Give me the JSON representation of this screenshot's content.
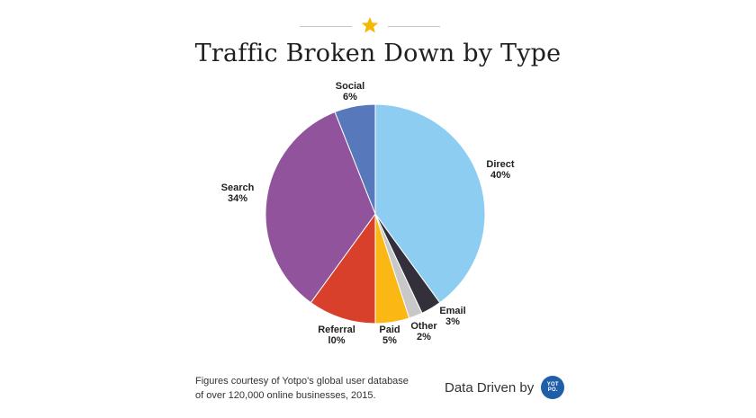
{
  "header": {
    "title": "Traffic Broken Down by Type",
    "star_color": "#f5b800"
  },
  "chart_data": {
    "type": "pie",
    "title": "Traffic Broken Down by Type",
    "slices": [
      {
        "label": "Direct",
        "value": 40,
        "value_label": "40%",
        "color": "#8ecdf2"
      },
      {
        "label": "Email",
        "value": 3,
        "value_label": "3%",
        "color": "#33303c"
      },
      {
        "label": "Other",
        "value": 2,
        "value_label": "2%",
        "color": "#c8c8c8"
      },
      {
        "label": "Paid",
        "value": 5,
        "value_label": "5%",
        "color": "#fbb713"
      },
      {
        "label": "Referral",
        "value": 10,
        "value_label": "l0%",
        "color": "#d9402b"
      },
      {
        "label": "Search",
        "value": 34,
        "value_label": "34%",
        "color": "#91549c"
      },
      {
        "label": "Social",
        "value": 6,
        "value_label": "6%",
        "color": "#5779bb"
      }
    ]
  },
  "footer": {
    "note_line1": "Figures courtesy of Yotpo's global user database",
    "note_line2": "of over 120,000 online businesses, 2015.",
    "brand_text": "Data Driven by",
    "logo_line1": "YOT",
    "logo_line2": "PO.",
    "logo_color": "#1e5fa8"
  }
}
